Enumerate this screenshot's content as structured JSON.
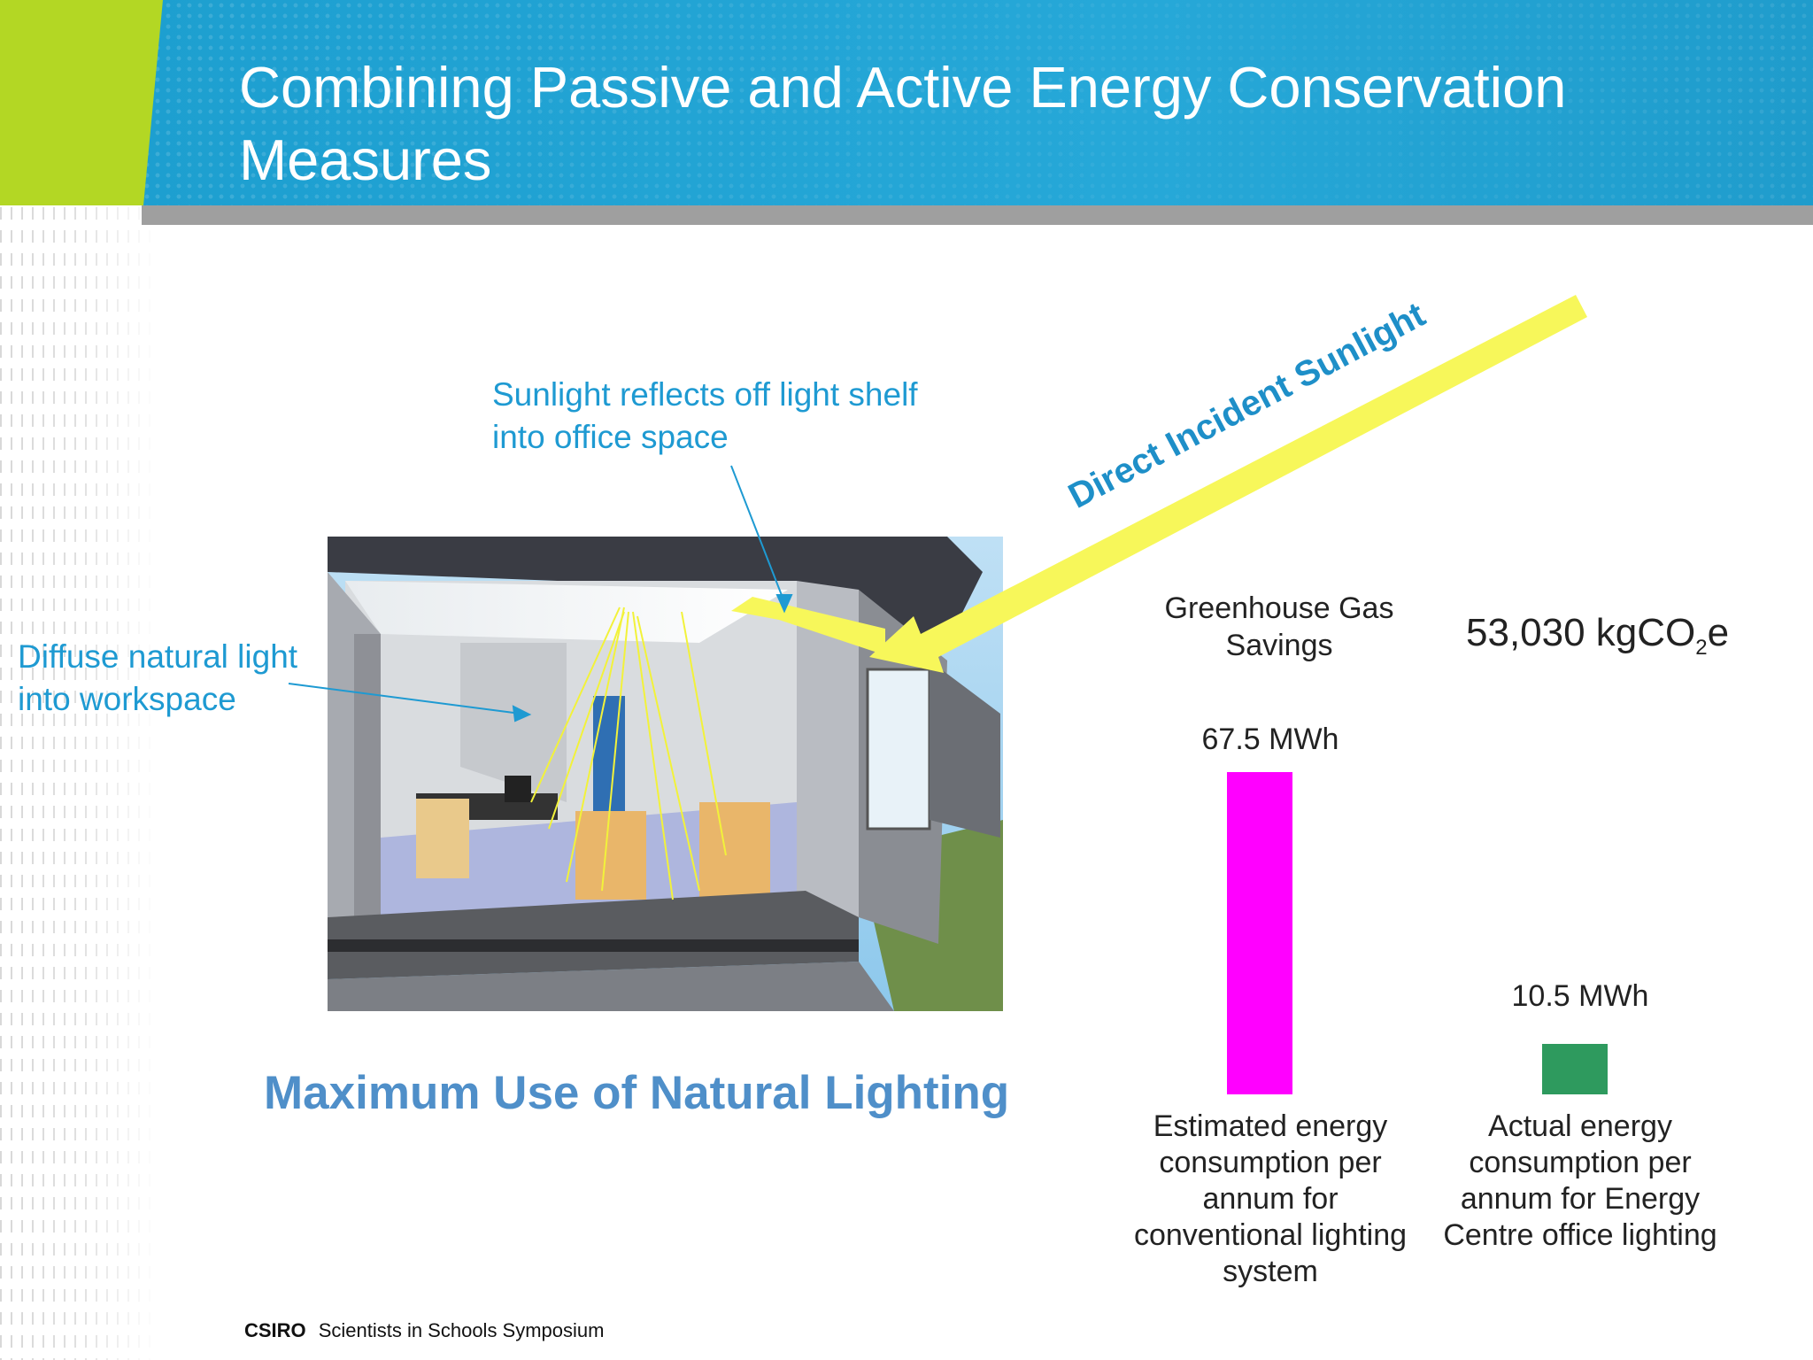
{
  "slide": {
    "title": "Combining Passive and Active Energy Conservation Measures",
    "labels": {
      "reflect": "Sunlight reflects off light shelf into office space",
      "diffuse": "Diffuse natural light into workspace",
      "sunlight": "Direct Incident Sunlight"
    },
    "heading": "Maximum Use of Natural Lighting",
    "colors": {
      "header": "#26a8d8",
      "accent_green": "#b3d724",
      "label_blue": "#1e9ad2",
      "heading_blue": "#4f8fc9",
      "sun_arrow": "#f7f75a"
    }
  },
  "savings": {
    "label": "Greenhouse Gas Savings",
    "value_main": "53,030 kgCO",
    "value_sub": "2",
    "value_suffix": "e"
  },
  "chart_data": {
    "type": "bar",
    "categories": [
      "Estimated energy consumption per annum for conventional lighting system",
      "Actual energy consumption per annum for Energy Centre office lighting"
    ],
    "values": [
      67.5,
      10.5
    ],
    "value_labels": [
      "67.5 MWh",
      "10.5 MWh"
    ],
    "colors": [
      "#ff00ff",
      "#2e9a5e"
    ],
    "ylim": [
      0,
      67.5
    ]
  },
  "footer": {
    "org": "CSIRO",
    "text": "Scientists in Schools Symposium"
  }
}
